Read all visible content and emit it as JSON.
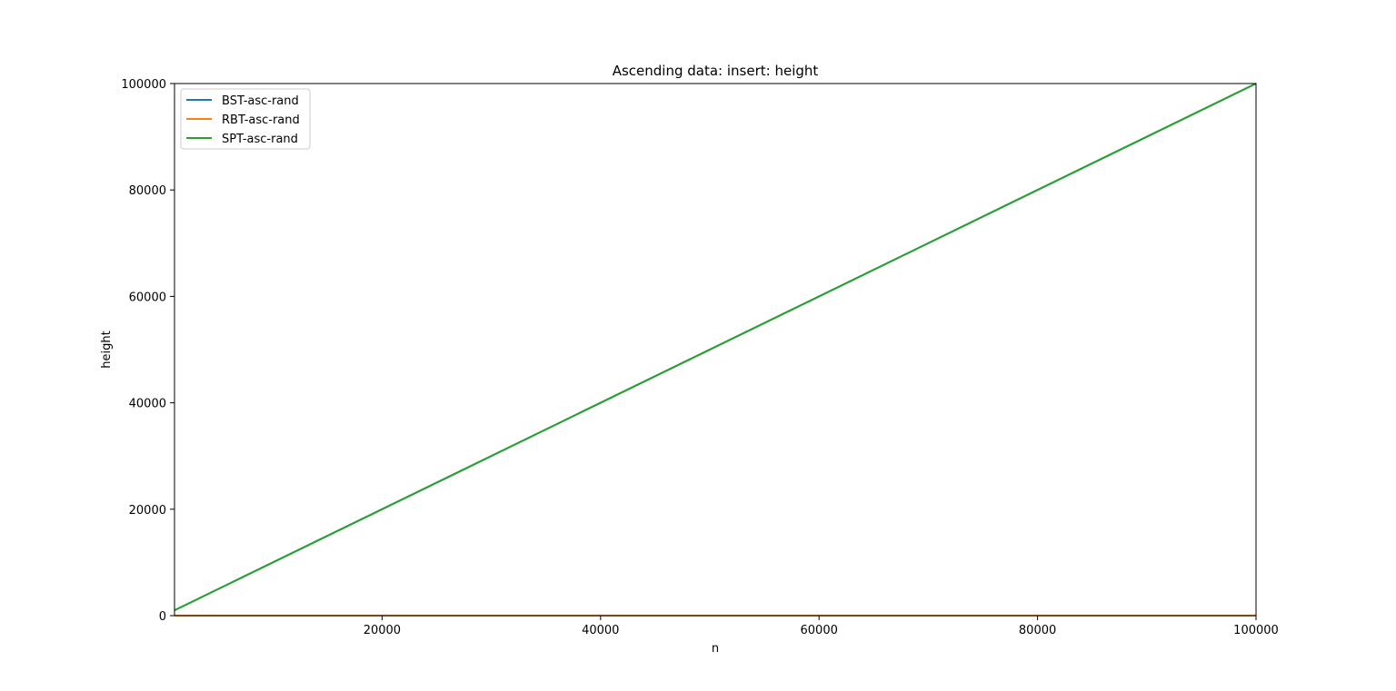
{
  "chart_data": {
    "type": "line",
    "title": "Ascending data: insert: height",
    "xlabel": "n",
    "ylabel": "height",
    "xlim": [
      1000,
      100000
    ],
    "ylim": [
      0,
      100000
    ],
    "xticks": [
      20000,
      40000,
      60000,
      80000,
      100000
    ],
    "xtick_labels": [
      "20000",
      "40000",
      "60000",
      "80000",
      "100000"
    ],
    "yticks": [
      0,
      20000,
      40000,
      60000,
      80000,
      100000
    ],
    "ytick_labels": [
      "0",
      "20000",
      "40000",
      "60000",
      "80000",
      "100000"
    ],
    "grid": false,
    "legend_position": "top-left",
    "series": [
      {
        "name": "BST-asc-rand",
        "color": "#1f77b4",
        "x": [
          1000,
          100000
        ],
        "y": [
          1000,
          100000
        ]
      },
      {
        "name": "RBT-asc-rand",
        "color": "#ff7f0e",
        "x": [
          1000,
          100000
        ],
        "y": [
          18,
          31
        ]
      },
      {
        "name": "SPT-asc-rand",
        "color": "#2ca02c",
        "x": [
          1000,
          100000
        ],
        "y": [
          1000,
          100000
        ]
      }
    ]
  }
}
